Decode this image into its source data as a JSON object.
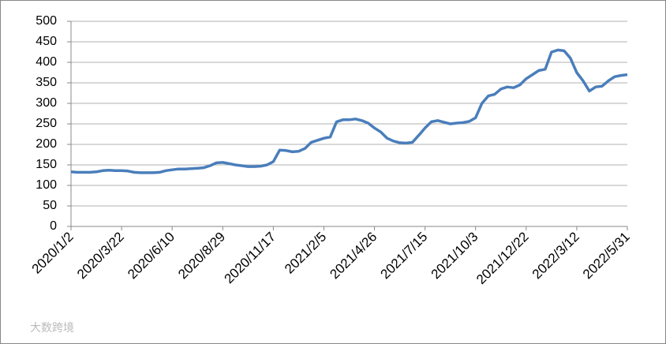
{
  "chart_data": {
    "type": "line",
    "categories": [
      "2020/1/2",
      null,
      null,
      null,
      null,
      null,
      null,
      null,
      "2020/3/22",
      null,
      null,
      null,
      null,
      null,
      null,
      null,
      "2020/6/10",
      null,
      null,
      null,
      null,
      null,
      null,
      null,
      "2020/8/29",
      null,
      null,
      null,
      null,
      null,
      null,
      null,
      "2020/11/17",
      null,
      null,
      null,
      null,
      null,
      null,
      null,
      "2021/2/5",
      null,
      null,
      null,
      null,
      null,
      null,
      null,
      "2021/4/26",
      null,
      null,
      null,
      null,
      null,
      null,
      null,
      "2021/7/15",
      null,
      null,
      null,
      null,
      null,
      null,
      null,
      "2021/10/3",
      null,
      null,
      null,
      null,
      null,
      null,
      null,
      "2021/12/22",
      null,
      null,
      null,
      null,
      null,
      null,
      null,
      "2022/3/12",
      null,
      null,
      null,
      null,
      null,
      null,
      null,
      "2022/5/31"
    ],
    "values": [
      133,
      132,
      132,
      132,
      133,
      136,
      137,
      136,
      136,
      135,
      132,
      131,
      131,
      131,
      132,
      136,
      138,
      140,
      140,
      141,
      142,
      143,
      148,
      155,
      156,
      153,
      150,
      148,
      146,
      146,
      147,
      150,
      158,
      186,
      185,
      182,
      183,
      190,
      205,
      210,
      215,
      218,
      255,
      260,
      260,
      262,
      258,
      252,
      240,
      230,
      215,
      208,
      204,
      203,
      205,
      222,
      240,
      255,
      258,
      254,
      250,
      252,
      253,
      256,
      265,
      300,
      318,
      322,
      335,
      340,
      338,
      345,
      360,
      370,
      380,
      383,
      425,
      430,
      428,
      410,
      375,
      355,
      330,
      340,
      342,
      355,
      365,
      368,
      370
    ],
    "color": "#4a7ebb",
    "ylim": [
      0,
      500
    ],
    "yticks": [
      0,
      50,
      100,
      150,
      200,
      250,
      300,
      350,
      400,
      450,
      500
    ],
    "grid": true,
    "watermark": "大数跨境"
  }
}
